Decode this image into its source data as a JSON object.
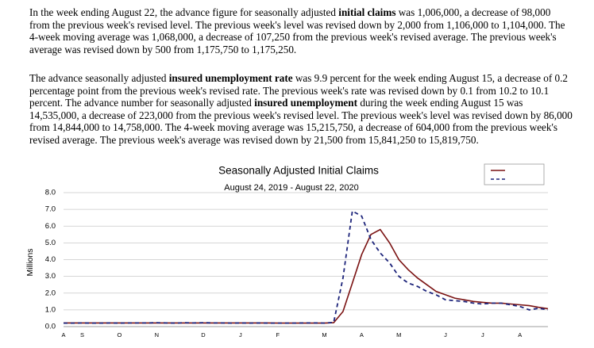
{
  "paragraphs": [
    [
      {
        "text": "In the week ending August 22, the advance figure for seasonally adjusted "
      },
      {
        "text": "initial claims",
        "bold": true
      },
      {
        "text": " was 1,006,000, a decrease of 98,000 from the previous week's revised level. The previous week's level was revised down by 2,000 from 1,106,000 to 1,104,000. The 4-week moving average was 1,068,000, a decrease of 107,250 from the previous week's revised average. The previous week's average was revised down by 500 from 1,175,750 to 1,175,250."
      }
    ],
    [
      {
        "text": "The advance seasonally adjusted "
      },
      {
        "text": "insured unemployment rate",
        "bold": true
      },
      {
        "text": " was 9.9 percent for the week ending August 15, a decrease of 0.2 percentage point from the previous week's revised rate. The previous week's rate was revised down by 0.1 from 10.2 to 10.1 percent. The advance number for seasonally adjusted "
      },
      {
        "text": "insured unemployment",
        "bold": true
      },
      {
        "text": " during the week ending August 15 was 14,535,000, a decrease of 223,000 from the previous week's revised level. The previous week's level was revised down by 86,000 from 14,844,000 to 14,758,000. The 4-week moving average was 15,215,750, a decrease of 604,000 from the previous week's revised average. The previous week's average was revised down by 21,500 from 15,841,250 to 15,819,750."
      }
    ]
  ],
  "chart_data": {
    "type": "line",
    "title": "Seasonally Adjusted Initial Claims",
    "subtitle": "August 24, 2019 - August 22, 2020",
    "y_label": "Millions",
    "categories": [
      "A",
      null,
      "S",
      null,
      null,
      null,
      "O",
      null,
      null,
      null,
      "N",
      null,
      null,
      null,
      null,
      "D",
      null,
      null,
      null,
      "J",
      null,
      null,
      null,
      "F",
      null,
      null,
      null,
      null,
      "M",
      null,
      null,
      null,
      "A",
      null,
      null,
      null,
      "M",
      null,
      null,
      null,
      null,
      "J",
      null,
      null,
      null,
      "J",
      null,
      null,
      null,
      "A",
      null,
      null,
      null
    ],
    "series": [
      {
        "color": "#7a1212",
        "style": "solid",
        "values": [
          0.22,
          0.22,
          0.22,
          0.22,
          0.22,
          0.22,
          0.22,
          0.22,
          0.22,
          0.22,
          0.22,
          0.22,
          0.22,
          0.22,
          0.22,
          0.22,
          0.22,
          0.22,
          0.22,
          0.22,
          0.22,
          0.22,
          0.22,
          0.21,
          0.21,
          0.21,
          0.21,
          0.21,
          0.21,
          0.23,
          0.9,
          2.6,
          4.3,
          5.5,
          5.8,
          5.0,
          4.0,
          3.4,
          2.9,
          2.5,
          2.1,
          1.9,
          1.7,
          1.6,
          1.5,
          1.45,
          1.4,
          1.4,
          1.35,
          1.3,
          1.25,
          1.15,
          1.07
        ]
      },
      {
        "color": "#1c237a",
        "style": "dashed",
        "values": [
          0.21,
          0.21,
          0.22,
          0.21,
          0.21,
          0.22,
          0.21,
          0.22,
          0.22,
          0.22,
          0.23,
          0.22,
          0.21,
          0.23,
          0.22,
          0.23,
          0.22,
          0.22,
          0.21,
          0.22,
          0.21,
          0.22,
          0.21,
          0.21,
          0.21,
          0.21,
          0.22,
          0.22,
          0.21,
          0.25,
          2.9,
          6.9,
          6.6,
          5.2,
          4.4,
          3.8,
          3.0,
          2.6,
          2.4,
          2.1,
          1.9,
          1.6,
          1.55,
          1.5,
          1.4,
          1.35,
          1.4,
          1.4,
          1.3,
          1.2,
          1.0,
          1.1,
          1.0
        ]
      }
    ],
    "ylim": [
      0,
      8
    ],
    "yticks": [
      {
        "value": 0,
        "label": "0.0"
      },
      {
        "value": 1,
        "label": "1.0"
      },
      {
        "value": 2,
        "label": "2.0"
      },
      {
        "value": 3,
        "label": "3.0"
      },
      {
        "value": 4,
        "label": "4.0"
      },
      {
        "value": 5,
        "label": "5.0"
      },
      {
        "value": 6,
        "label": "6.0"
      },
      {
        "value": 7,
        "label": "7.0"
      },
      {
        "value": 8,
        "label": "8.0"
      }
    ],
    "grid": true,
    "legend": "upper right"
  }
}
